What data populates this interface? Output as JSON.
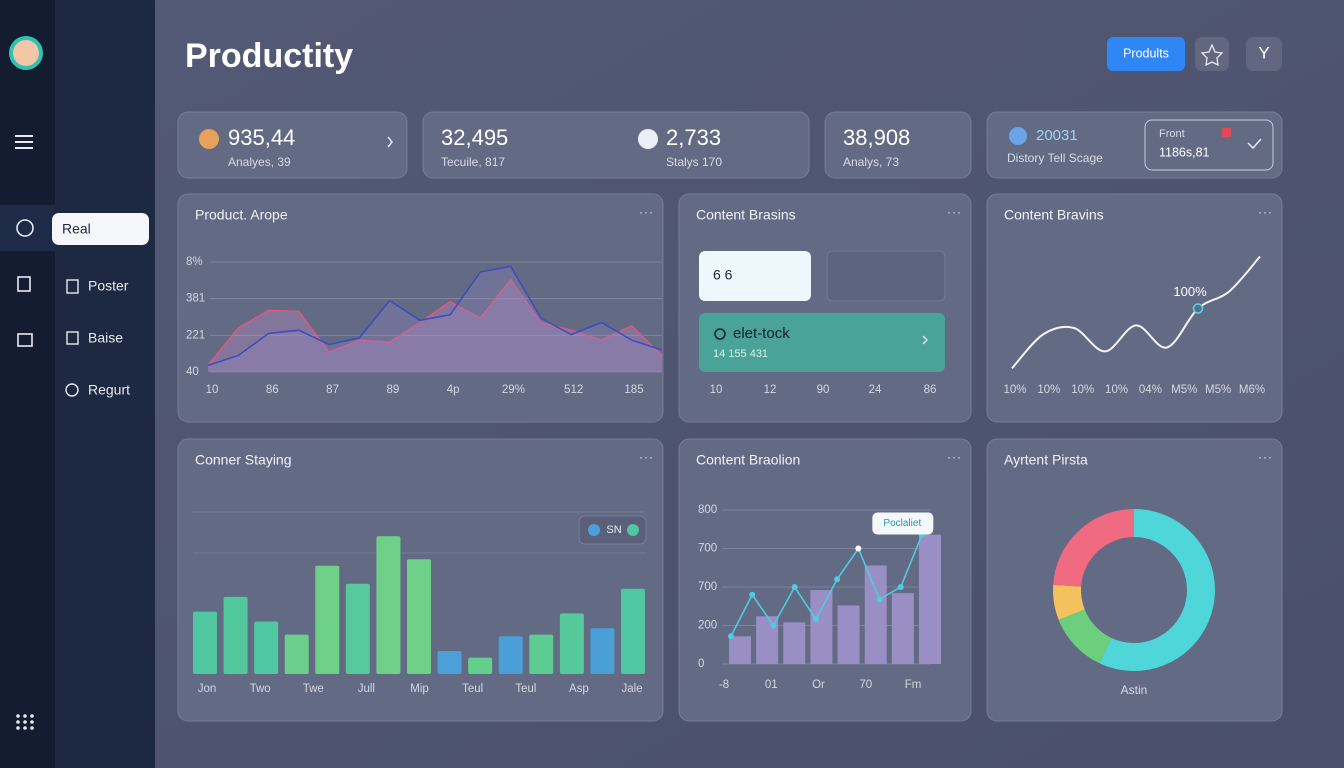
{
  "header": {
    "title": "Productity",
    "button": "Prodults",
    "icon_label": "Y"
  },
  "sidebar": {
    "menu": [
      "Real",
      "Poster",
      "Baise",
      "Regurt"
    ]
  },
  "stats": [
    {
      "value": "935,44",
      "label": "Analyes, 39"
    },
    {
      "value": "32,495",
      "label": "Tecuile, 817"
    },
    {
      "value": "2,733",
      "label": "Stalys 170"
    },
    {
      "value": "38,908",
      "label": "Analys, 73"
    },
    {
      "value": "20031",
      "label": "Distory Tell Scage"
    },
    {
      "value": "1186s,81",
      "label": "Front"
    }
  ],
  "content_panel": {
    "title": "Content Brasins",
    "box": "6 6",
    "card_title": "elet-tock",
    "card_subtitle": "14 155 431",
    "x_labels": [
      "10",
      "12",
      "90",
      "24",
      "86"
    ]
  },
  "chart_data": [
    {
      "type": "line",
      "title": "Product. Arope",
      "fill": true,
      "smooth": false,
      "y_labels": [
        "8%",
        "381",
        "221",
        "40"
      ],
      "x_labels": [
        "10",
        "86",
        "87",
        "89",
        "4p",
        "29%",
        "512",
        "185"
      ],
      "ylim": [
        0,
        100
      ],
      "series": [
        {
          "color": "#e0567e",
          "values": [
            6,
            40,
            56,
            55,
            18,
            29,
            27,
            45,
            64,
            49,
            84,
            45,
            38,
            29,
            42,
            15
          ]
        },
        {
          "color": "#3a4cc0",
          "values": [
            6,
            15,
            35,
            38,
            25,
            31,
            65,
            47,
            52,
            91,
            96,
            49,
            34,
            45,
            29,
            20
          ]
        }
      ]
    },
    {
      "type": "line",
      "title": "Content Bravins",
      "fill": false,
      "smooth": true,
      "annotation": "100%",
      "x_labels": [
        "10%",
        "10%",
        "10%",
        "10%",
        "04%",
        "M5%",
        "M5%",
        "M6%"
      ],
      "ylim": [
        0,
        100
      ],
      "series": [
        {
          "color": "#f2f3f8",
          "values": [
            9,
            35,
            40,
            22,
            42,
            25,
            55,
            68,
            95
          ]
        }
      ]
    },
    {
      "type": "bar",
      "title": "Conner Staying",
      "legend": "SN",
      "x_labels": [
        "Jon",
        "Two",
        "Twe",
        "Jull",
        "Mip",
        "Teul",
        "Teul",
        "Asp",
        "Jale"
      ],
      "ylim": [
        0,
        100
      ],
      "values": [
        38,
        47,
        32,
        24,
        66,
        55,
        84,
        70,
        14,
        10,
        23,
        24,
        37,
        28,
        52
      ],
      "colors": [
        "#4fc7a0",
        "#52c99c",
        "#4fc7a0",
        "#6dcf8c",
        "#6fd089",
        "#57c99a",
        "#6fd08a",
        "#6fd089",
        "#4d9fd8",
        "#62cf8d",
        "#4a9fd6",
        "#5ccc92",
        "#55c99a",
        "#4a9fd6",
        "#4fc7a0"
      ]
    },
    {
      "type": "combo",
      "title": "Content Braolion",
      "annotation": "Poclaliet",
      "y_labels": [
        "800",
        "700",
        "700",
        "200",
        "0"
      ],
      "x_labels": [
        "-8",
        "01",
        "Or",
        "70",
        "Fm"
      ],
      "ylim": [
        0,
        100
      ],
      "bar_color": "#9a8fc4",
      "line_color": "#4fcbe0",
      "bars": [
        18,
        31,
        27,
        48,
        38,
        64,
        46,
        84
      ],
      "line": [
        18,
        45,
        25,
        50,
        29,
        55,
        75,
        42,
        50,
        84
      ]
    },
    {
      "type": "pie",
      "title": "Ayrtent Pirsta",
      "donut": true,
      "label": "Astin",
      "values": [
        57,
        12,
        7,
        24
      ],
      "colors": [
        "#4fd6d8",
        "#6ccf7e",
        "#f3c15e",
        "#f06a82"
      ]
    }
  ]
}
